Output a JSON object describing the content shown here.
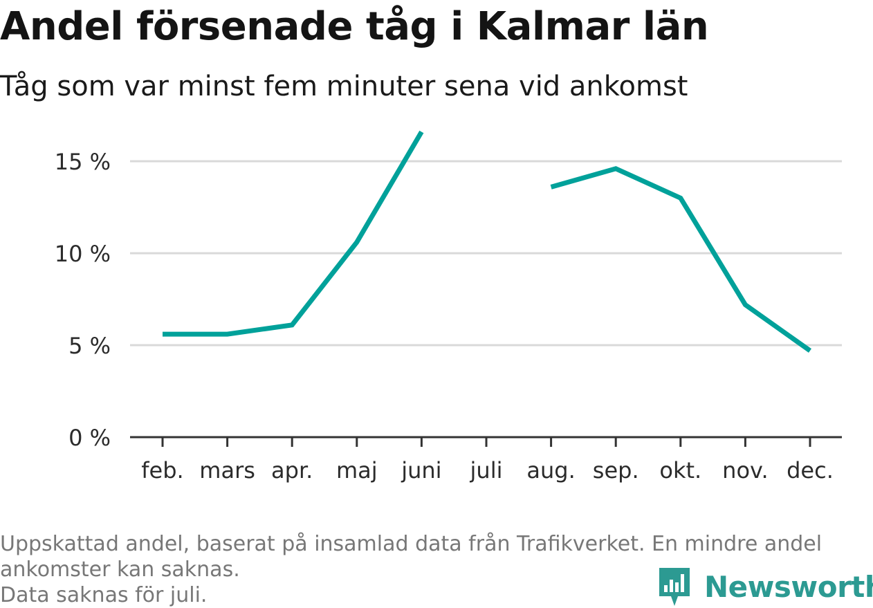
{
  "title": "Andel försenade tåg i Kalmar län",
  "subtitle": "Tåg som var minst fem minuter sena vid ankomst",
  "footer": {
    "line1": "Uppskattad andel, baserat på insamlad data från Trafikverket. En mindre andel ankomster kan saknas.",
    "line2": "Data saknas för juli."
  },
  "logo": {
    "text": "Newsworthy",
    "icon": "bar-chart-speech-icon"
  },
  "colors": {
    "line": "#00a19a",
    "grid": "#d9d9d9",
    "axis": "#333333",
    "logo": "#2c9a92"
  },
  "chart_data": {
    "type": "line",
    "title": "Andel försenade tåg i Kalmar län",
    "subtitle": "Tåg som var minst fem minuter sena vid ankomst",
    "categories": [
      "feb.",
      "mars",
      "apr.",
      "maj",
      "juni",
      "juli",
      "aug.",
      "sep.",
      "okt.",
      "nov.",
      "dec."
    ],
    "values": [
      5.6,
      5.6,
      6.1,
      10.6,
      16.6,
      null,
      13.6,
      14.6,
      13.0,
      7.2,
      4.7
    ],
    "y_ticks": [
      0,
      5,
      10,
      15
    ],
    "y_tick_labels": [
      "0 %",
      "5 %",
      "10 %",
      "15 %"
    ],
    "ylim": [
      0,
      17
    ],
    "grid": true,
    "xlabel": "",
    "ylabel": ""
  }
}
